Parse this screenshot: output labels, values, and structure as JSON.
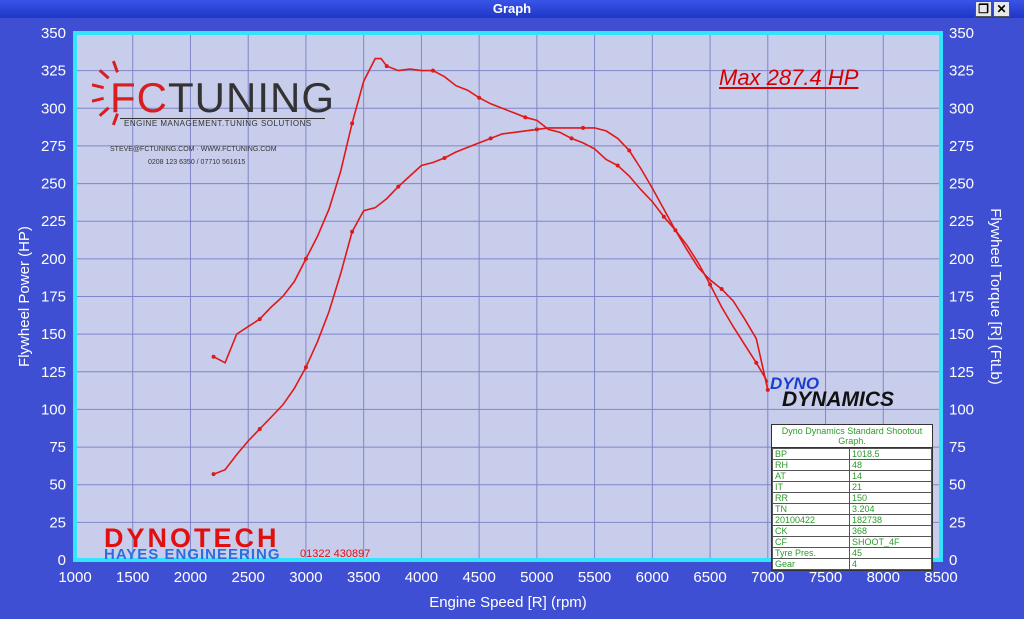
{
  "window": {
    "title": "Graph",
    "restore_icon": "restore-icon",
    "close_icon": "close-icon"
  },
  "annotation": {
    "max_hp": "Max 287.4 HP"
  },
  "logos": {
    "fc_prefix": "FC",
    "fc_rest": "TUNING",
    "fc_tagline": "ENGINE MANAGEMENT.TUNING SOLUTIONS",
    "fc_contact": "STEVE@FCTUNING.COM  ·  WWW.FCTUNING.COM",
    "fc_phone": "0208 123 6350 / 07710 561615",
    "dynotech": "DYNOTECH",
    "hayes": "HAYES ENGINEERING",
    "hayes_phone": "01322 430897",
    "dyno_line1": "DYNO",
    "dyno_line2": "DYNAMICS"
  },
  "info_box": {
    "header": "Dyno Dynamics Standard Shootout Graph.",
    "rows": [
      [
        "BP",
        "1018.5"
      ],
      [
        "RH",
        "48"
      ],
      [
        "AT",
        "14"
      ],
      [
        "IT",
        "21"
      ],
      [
        "RR",
        "150"
      ],
      [
        "TN",
        "3.204"
      ],
      [
        "20100422",
        "182738"
      ],
      [
        "CK",
        "368"
      ],
      [
        "CF",
        "SHOOT_4F"
      ],
      [
        "Tyre Pres.",
        "45"
      ],
      [
        "Gear",
        "4"
      ]
    ]
  },
  "colors": {
    "background": "#3f4fd3",
    "plot_bg": "#c9cdec",
    "plot_border": "#33e4ff",
    "curve": "#e01818"
  },
  "chart_data": {
    "type": "line",
    "xlabel": "Engine Speed [R] (rpm)",
    "ylabel": "Flywheel Power (HP)",
    "y2label": "Flywheel Torque [R] (FtLb)",
    "xlim": [
      1000,
      8500
    ],
    "ylim": [
      0,
      350
    ],
    "y2lim": [
      0,
      350
    ],
    "xticks": [
      1000,
      1500,
      2000,
      2500,
      3000,
      3500,
      4000,
      4500,
      5000,
      5500,
      6000,
      6500,
      7000,
      7500,
      8000,
      8500
    ],
    "yticks": [
      0,
      25,
      50,
      75,
      100,
      125,
      150,
      175,
      200,
      225,
      250,
      275,
      300,
      325,
      350
    ],
    "grid": true,
    "series": [
      {
        "x": [
          2200,
          2300,
          2400,
          2500,
          2600,
          2700,
          2800,
          2900,
          3000,
          3100,
          3200,
          3300,
          3400,
          3500,
          3600,
          3700,
          3800,
          3900,
          4000,
          4100,
          4200,
          4300,
          4400,
          4500,
          4600,
          4700,
          4800,
          4900,
          5000,
          5100,
          5200,
          5300,
          5400,
          5500,
          5600,
          5700,
          5800,
          5900,
          6000,
          6100,
          6200,
          6300,
          6400,
          6500,
          6600,
          6700,
          6800,
          6900,
          7000
        ],
        "values": [
          57,
          60,
          70,
          79,
          87,
          95,
          103,
          114,
          128,
          145,
          165,
          190,
          218,
          232,
          234,
          240,
          248,
          255,
          262,
          264,
          267,
          271,
          274,
          277,
          280,
          283,
          284,
          285,
          286,
          287,
          287,
          287,
          287,
          287,
          285,
          280,
          272,
          260,
          247,
          233,
          219,
          206,
          194,
          186,
          180,
          172,
          160,
          147,
          113
        ]
      },
      {
        "x": [
          2200,
          2300,
          2400,
          2500,
          2600,
          2700,
          2800,
          2900,
          3000,
          3100,
          3200,
          3300,
          3400,
          3500,
          3600,
          3650,
          3700,
          3800,
          3900,
          4000,
          4100,
          4200,
          4300,
          4400,
          4500,
          4600,
          4700,
          4800,
          4900,
          5000,
          5100,
          5200,
          5300,
          5400,
          5500,
          5600,
          5700,
          5800,
          5900,
          6000,
          6100,
          6200,
          6300,
          6400,
          6500,
          6600,
          6700,
          6800,
          6900,
          7000
        ],
        "values": [
          135,
          131,
          150,
          155,
          160,
          168,
          175,
          185,
          200,
          215,
          233,
          258,
          290,
          318,
          333,
          333,
          328,
          325,
          326,
          325,
          325,
          321,
          315,
          312,
          307,
          303,
          300,
          297,
          294,
          292,
          286,
          284,
          280,
          277,
          273,
          266,
          262,
          255,
          246,
          238,
          228,
          219,
          209,
          197,
          183,
          168,
          155,
          143,
          131,
          118
        ]
      }
    ]
  }
}
